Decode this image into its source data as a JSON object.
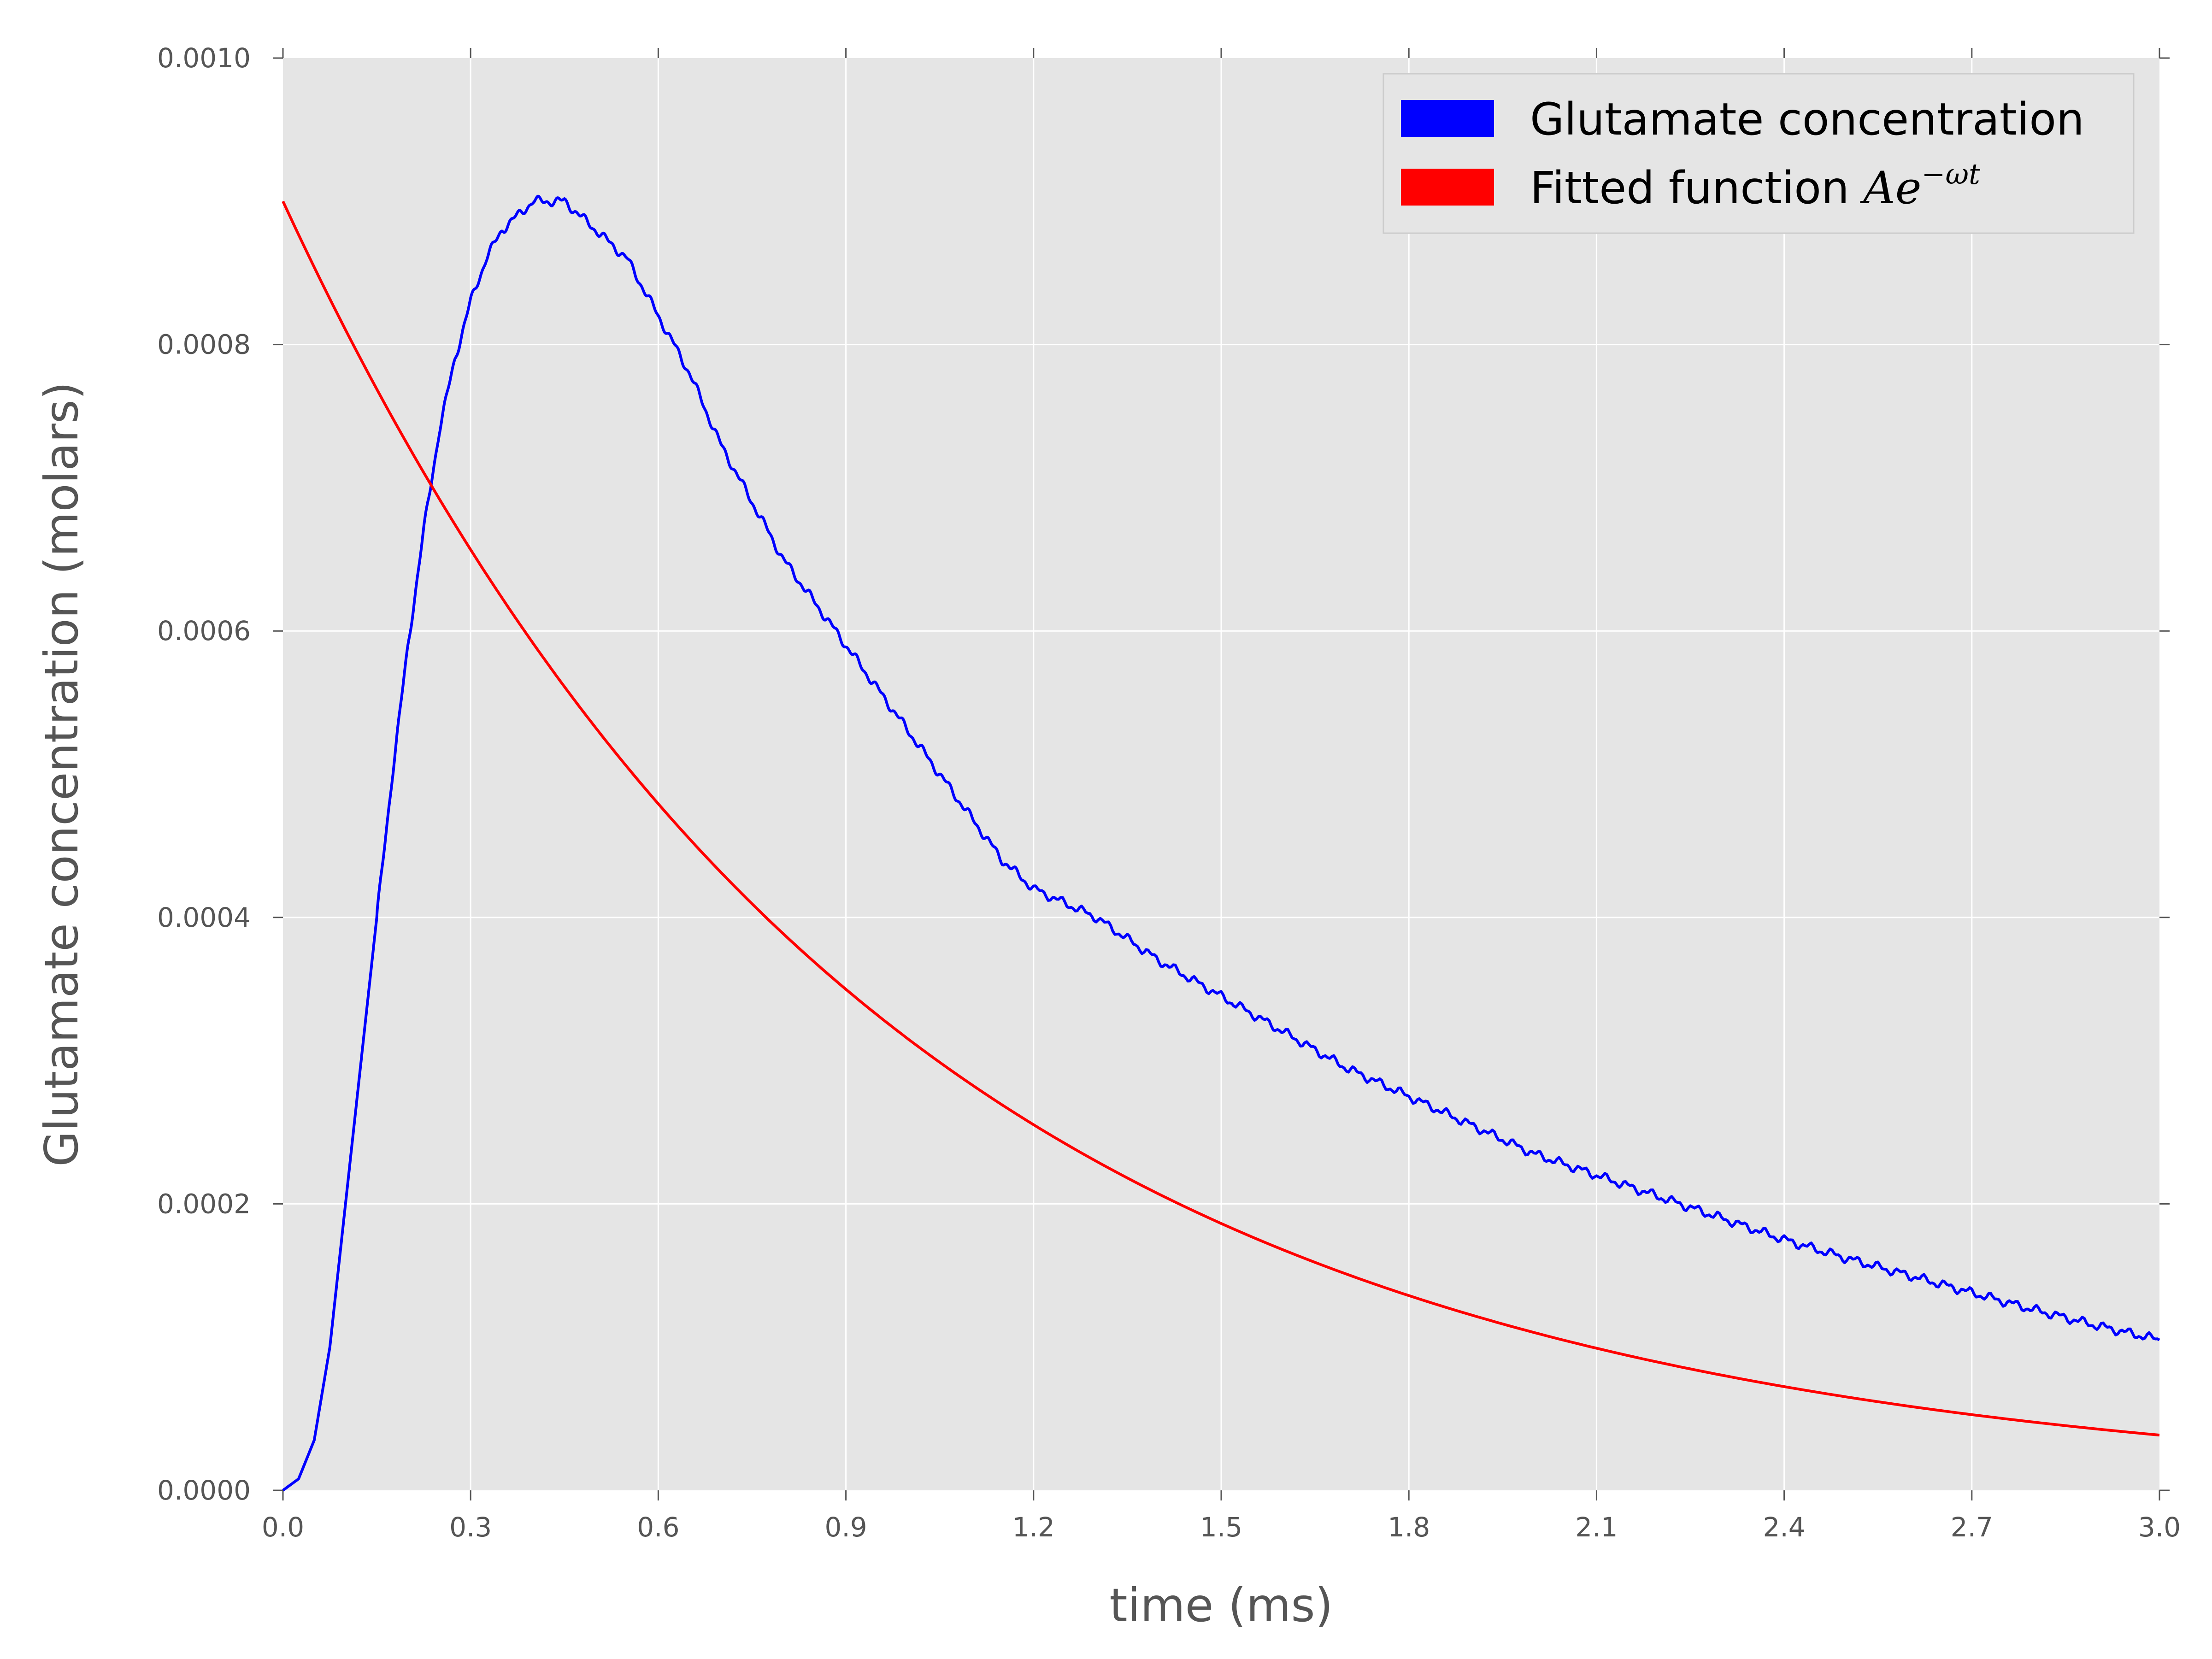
{
  "chart_data": {
    "type": "line",
    "xlabel": "time (ms)",
    "ylabel": "Glutamate concentration (molars)",
    "xlim": [
      0.0,
      3.0
    ],
    "ylim": [
      0.0,
      0.001
    ],
    "xticks": [
      "0.0",
      "0.3",
      "0.6",
      "0.9",
      "1.2",
      "1.5",
      "1.8",
      "2.1",
      "2.4",
      "2.7",
      "3.0"
    ],
    "yticks": [
      "0.0000",
      "0.0002",
      "0.0004",
      "0.0006",
      "0.0008",
      "0.0010"
    ],
    "grid": true,
    "legend_position": "top-right",
    "series": [
      {
        "name": "Glutamate concentration",
        "color": "#0000ff",
        "x": [
          0.0,
          0.025,
          0.05,
          0.075,
          0.1,
          0.125,
          0.15,
          0.175,
          0.2,
          0.225,
          0.25,
          0.275,
          0.3,
          0.325,
          0.35,
          0.375,
          0.4,
          0.425,
          0.45,
          0.5,
          0.55,
          0.6,
          0.65,
          0.7,
          0.75,
          0.8,
          0.85,
          0.9,
          0.95,
          1.0,
          1.05,
          1.1,
          1.15,
          1.2,
          1.3,
          1.4,
          1.5,
          1.6,
          1.7,
          1.8,
          1.9,
          2.0,
          2.1,
          2.2,
          2.3,
          2.4,
          2.5,
          2.6,
          2.7,
          2.8,
          2.9,
          3.0
        ],
        "y": [
          0.0,
          8e-06,
          3.5e-05,
          0.0001,
          0.0002,
          0.0003,
          0.0004,
          0.0005,
          0.00059,
          0.00067,
          0.00074,
          0.00079,
          0.00083,
          0.00086,
          0.00088,
          0.00089,
          0.0009,
          0.0009,
          0.0009,
          0.00088,
          0.00086,
          0.00082,
          0.00078,
          0.00073,
          0.00069,
          0.00065,
          0.00062,
          0.00059,
          0.00056,
          0.00053,
          0.0005,
          0.00047,
          0.00044,
          0.00042,
          0.0004,
          0.00037,
          0.000345,
          0.00032,
          0.000295,
          0.000275,
          0.000255,
          0.000235,
          0.00022,
          0.000205,
          0.00019,
          0.000175,
          0.000162,
          0.00015,
          0.000138,
          0.000126,
          0.000115,
          0.000105
        ]
      },
      {
        "name": "Fitted function ",
        "name_math": "Ae",
        "name_math_sup": "−ωt",
        "color": "#ff0000",
        "function": "A*exp(-w*t)",
        "A": 0.0009,
        "w": 1.05,
        "x_range": [
          0.0,
          3.0
        ]
      }
    ]
  }
}
